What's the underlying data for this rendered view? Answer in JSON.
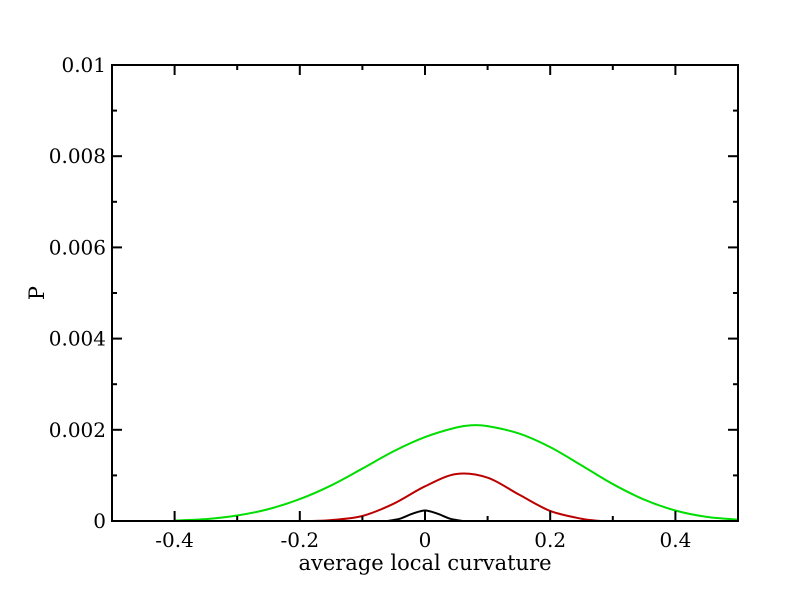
{
  "chart_data": {
    "type": "line",
    "title": "",
    "xlabel": "average local curvature",
    "ylabel": "P",
    "xlim": [
      -0.5,
      0.5
    ],
    "ylim": [
      0,
      0.01
    ],
    "x_ticks": [
      -0.4,
      -0.2,
      0,
      0.2,
      0.4
    ],
    "x_tick_labels": [
      "-0.4",
      "-0.2",
      "0",
      "0.2",
      "0.4"
    ],
    "y_ticks": [
      0,
      0.002,
      0.004,
      0.006,
      0.008,
      0.01
    ],
    "y_tick_labels": [
      "0",
      "0.002",
      "0.004",
      "0.006",
      "0.008",
      "0.01"
    ],
    "grid": false,
    "legend": "none",
    "series": [
      {
        "color": "#00dd00",
        "x": [
          -0.4,
          -0.35,
          -0.3,
          -0.25,
          -0.2,
          -0.15,
          -0.1,
          -0.05,
          0,
          0.05,
          0.075,
          0.1,
          0.15,
          0.2,
          0.25,
          0.3,
          0.35,
          0.4,
          0.45,
          0.5
        ],
        "y": [
          1e-05,
          4e-05,
          0.00012,
          0.00026,
          0.00048,
          0.00078,
          0.00115,
          0.00153,
          0.00184,
          0.00205,
          0.0021,
          0.00208,
          0.00192,
          0.00162,
          0.00122,
          0.00081,
          0.00047,
          0.00023,
          9e-05,
          3e-05
        ]
      },
      {
        "color": "#bb0000",
        "x": [
          -0.18,
          -0.15,
          -0.1,
          -0.05,
          0,
          0.05,
          0.1,
          0.15,
          0.2,
          0.25,
          0.28
        ],
        "y": [
          0.0,
          2e-05,
          0.00011,
          0.00038,
          0.00076,
          0.00103,
          0.00095,
          0.00058,
          0.00022,
          5e-05,
          0.0
        ]
      },
      {
        "color": "#000000",
        "x": [
          -0.06,
          -0.04,
          -0.02,
          0,
          0.02,
          0.04,
          0.06
        ],
        "y": [
          0.0,
          5e-05,
          0.00016,
          0.00023,
          0.00016,
          5e-05,
          0.0
        ]
      }
    ]
  }
}
